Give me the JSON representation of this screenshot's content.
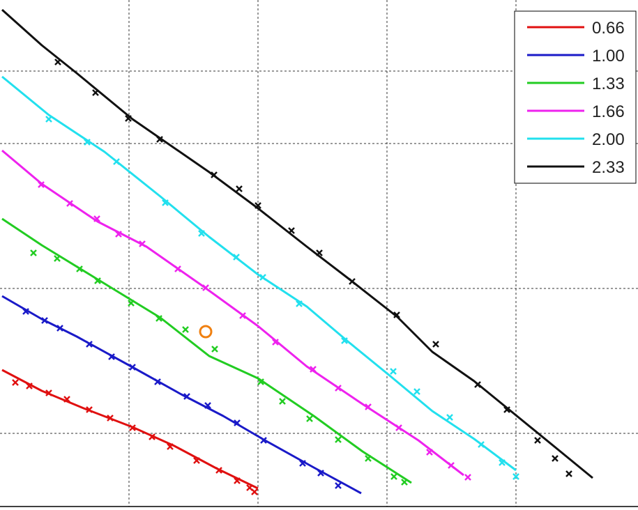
{
  "chart_data": {
    "type": "line",
    "title": "",
    "xlabel": "",
    "ylabel": "",
    "xlim": [
      0,
      915
    ],
    "ylim": [
      0,
      728
    ],
    "grid": true,
    "legend_position": "top-right",
    "series": [
      {
        "name": "0.66",
        "color": "#e01010",
        "line": [
          [
            3,
            531
          ],
          [
            60,
            561
          ],
          [
            120,
            586
          ],
          [
            190,
            613
          ],
          [
            250,
            640
          ],
          [
            310,
            672
          ],
          [
            370,
            701
          ]
        ],
        "points": [
          [
            22,
            549
          ],
          [
            42,
            554
          ],
          [
            70,
            564
          ],
          [
            96,
            573
          ],
          [
            128,
            588
          ],
          [
            158,
            600
          ],
          [
            190,
            614
          ],
          [
            218,
            627
          ],
          [
            244,
            641
          ],
          [
            282,
            661
          ],
          [
            314,
            675
          ],
          [
            340,
            690
          ],
          [
            358,
            700
          ],
          [
            365,
            706
          ]
        ]
      },
      {
        "name": "1.00",
        "color": "#1a1ac8",
        "line": [
          [
            3,
            425
          ],
          [
            60,
            458
          ],
          [
            110,
            483
          ],
          [
            190,
            527
          ],
          [
            260,
            566
          ],
          [
            320,
            597
          ],
          [
            380,
            632
          ],
          [
            450,
            671
          ],
          [
            518,
            708
          ]
        ],
        "points": [
          [
            37,
            447
          ],
          [
            64,
            460
          ],
          [
            86,
            471
          ],
          [
            128,
            494
          ],
          [
            160,
            512
          ],
          [
            190,
            527
          ],
          [
            226,
            548
          ],
          [
            268,
            569
          ],
          [
            298,
            582
          ],
          [
            340,
            607
          ],
          [
            378,
            632
          ],
          [
            434,
            665
          ],
          [
            460,
            679
          ],
          [
            485,
            697
          ]
        ]
      },
      {
        "name": "1.33",
        "color": "#22cc22",
        "line": [
          [
            3,
            314
          ],
          [
            60,
            352
          ],
          [
            140,
            401
          ],
          [
            230,
            456
          ],
          [
            300,
            511
          ],
          [
            370,
            543
          ],
          [
            450,
            597
          ],
          [
            520,
            648
          ],
          [
            590,
            693
          ]
        ],
        "points": [
          [
            48,
            363
          ],
          [
            82,
            371
          ],
          [
            114,
            386
          ],
          [
            140,
            403
          ],
          [
            188,
            435
          ],
          [
            228,
            457
          ],
          [
            266,
            473
          ],
          [
            308,
            501
          ],
          [
            374,
            548
          ],
          [
            405,
            576
          ],
          [
            444,
            601
          ],
          [
            485,
            631
          ],
          [
            528,
            658
          ],
          [
            565,
            684
          ],
          [
            580,
            692
          ]
        ]
      },
      {
        "name": "1.66",
        "color": "#ee22ee",
        "line": [
          [
            3,
            216
          ],
          [
            60,
            264
          ],
          [
            140,
            318
          ],
          [
            210,
            354
          ],
          [
            290,
            410
          ],
          [
            370,
            468
          ],
          [
            440,
            526
          ],
          [
            520,
            580
          ],
          [
            600,
            632
          ],
          [
            665,
            682
          ]
        ],
        "points": [
          [
            59,
            265
          ],
          [
            100,
            292
          ],
          [
            139,
            314
          ],
          [
            170,
            336
          ],
          [
            204,
            350
          ],
          [
            255,
            386
          ],
          [
            295,
            413
          ],
          [
            348,
            453
          ],
          [
            395,
            491
          ],
          [
            449,
            530
          ],
          [
            485,
            557
          ],
          [
            528,
            584
          ],
          [
            572,
            614
          ],
          [
            616,
            649
          ],
          [
            647,
            668
          ],
          [
            671,
            685
          ]
        ]
      },
      {
        "name": "2.00",
        "color": "#22e0ee",
        "line": [
          [
            3,
            110
          ],
          [
            70,
            165
          ],
          [
            150,
            218
          ],
          [
            230,
            282
          ],
          [
            300,
            340
          ],
          [
            370,
            394
          ],
          [
            440,
            440
          ],
          [
            500,
            491
          ],
          [
            560,
            540
          ],
          [
            620,
            590
          ],
          [
            680,
            630
          ],
          [
            740,
            675
          ]
        ],
        "points": [
          [
            70,
            171
          ],
          [
            125,
            204
          ],
          [
            167,
            232
          ],
          [
            237,
            291
          ],
          [
            289,
            335
          ],
          [
            339,
            369
          ],
          [
            377,
            398
          ],
          [
            429,
            436
          ],
          [
            494,
            489
          ],
          [
            564,
            533
          ],
          [
            598,
            562
          ],
          [
            645,
            599
          ],
          [
            690,
            638
          ],
          [
            720,
            664
          ],
          [
            740,
            684
          ]
        ]
      },
      {
        "name": "2.33",
        "color": "#111111",
        "line": [
          [
            3,
            14
          ],
          [
            60,
            65
          ],
          [
            110,
            105
          ],
          [
            190,
            171
          ],
          [
            300,
            247
          ],
          [
            370,
            299
          ],
          [
            440,
            354
          ],
          [
            500,
            400
          ],
          [
            570,
            455
          ],
          [
            620,
            505
          ],
          [
            680,
            547
          ],
          [
            740,
            596
          ],
          [
            800,
            645
          ],
          [
            850,
            686
          ]
        ],
        "points": [
          [
            83,
            89
          ],
          [
            137,
            133
          ],
          [
            184,
            170
          ],
          [
            229,
            200
          ],
          [
            307,
            251
          ],
          [
            343,
            271
          ],
          [
            370,
            295
          ],
          [
            418,
            331
          ],
          [
            458,
            363
          ],
          [
            505,
            404
          ],
          [
            569,
            452
          ],
          [
            625,
            494
          ],
          [
            685,
            552
          ],
          [
            727,
            588
          ],
          [
            771,
            632
          ],
          [
            796,
            658
          ],
          [
            816,
            680
          ]
        ]
      }
    ],
    "outlier": {
      "x": 295,
      "y": 476,
      "color": "#f08010"
    },
    "legend": [
      "0.66",
      "1.00",
      "1.33",
      "1.66",
      "2.00",
      "2.33"
    ]
  }
}
